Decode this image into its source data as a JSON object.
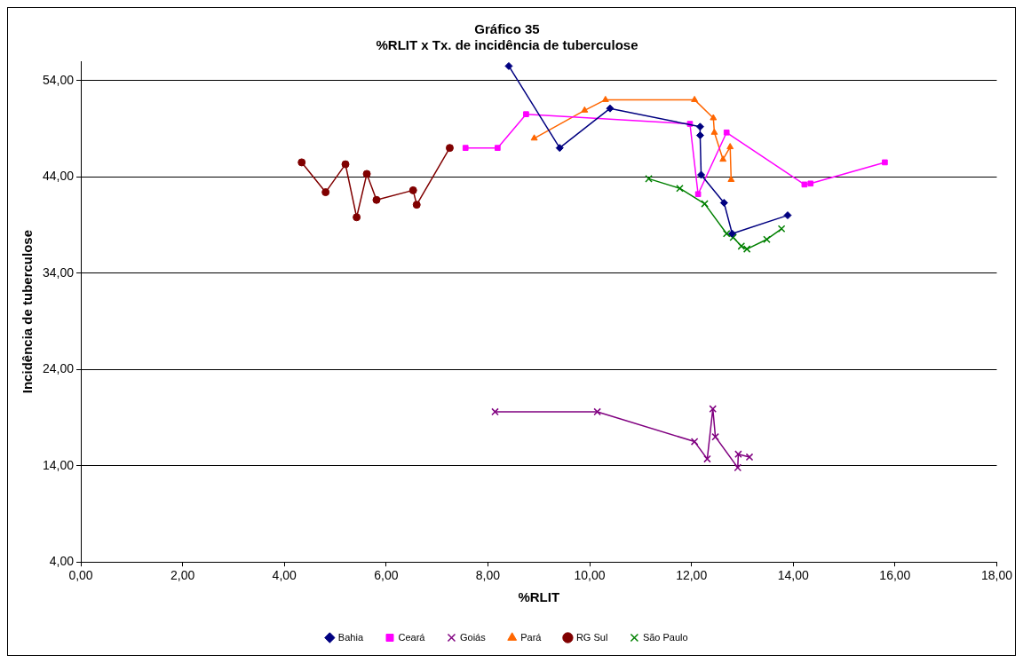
{
  "chart_data": {
    "type": "line",
    "title": [
      "Gráfico 35",
      "%RLIT x Tx. de incidência de tuberculose"
    ],
    "xlabel": "%RLIT",
    "ylabel": "Incidência de tuberculose",
    "xlim": [
      0,
      18
    ],
    "xticks": [
      {
        "value": 0,
        "label": "0,00"
      },
      {
        "value": 2,
        "label": "2,00"
      },
      {
        "value": 4,
        "label": "4,00"
      },
      {
        "value": 6,
        "label": "6,00"
      },
      {
        "value": 8,
        "label": "8,00"
      },
      {
        "value": 10,
        "label": "10,00"
      },
      {
        "value": 12,
        "label": "12,00"
      },
      {
        "value": 14,
        "label": "14,00"
      },
      {
        "value": 16,
        "label": "16,00"
      },
      {
        "value": 18,
        "label": "18,00"
      }
    ],
    "ylim": [
      4,
      56
    ],
    "yticks": [
      {
        "value": 4,
        "label": "4,00"
      },
      {
        "value": 14,
        "label": "14,00"
      },
      {
        "value": 24,
        "label": "24,00"
      },
      {
        "value": 34,
        "label": "34,00"
      },
      {
        "value": 44,
        "label": "44,00"
      },
      {
        "value": 54,
        "label": "54,00"
      }
    ],
    "grid": "y",
    "legend": "bottom",
    "line_style": "solid",
    "series": [
      {
        "name": "Bahia",
        "color": "#000080",
        "marker": "diamond",
        "x": [
          8.41,
          9.41,
          10.4,
          12.17,
          12.17,
          12.19,
          12.64,
          12.8,
          13.89
        ],
        "values": [
          55.5,
          47.0,
          51.1,
          49.2,
          48.3,
          44.2,
          41.3,
          38.1,
          40.0
        ]
      },
      {
        "name": "Ceará",
        "color": "#ff00ff",
        "marker": "square",
        "x": [
          7.56,
          8.19,
          8.75,
          11.97,
          12.13,
          12.69,
          14.22,
          14.34,
          15.8
        ],
        "values": [
          47.0,
          47.0,
          50.5,
          49.5,
          42.2,
          48.6,
          43.2,
          43.3,
          45.5
        ]
      },
      {
        "name": "Goiás",
        "color": "#800080",
        "marker": "cross",
        "x": [
          8.14,
          10.15,
          12.06,
          12.31,
          12.42,
          12.47,
          12.91,
          12.92,
          13.14
        ],
        "values": [
          19.6,
          19.6,
          16.5,
          14.7,
          19.9,
          17.0,
          13.8,
          15.2,
          14.9
        ]
      },
      {
        "name": "Pará",
        "color": "#ff6600",
        "marker": "triangle",
        "x": [
          8.91,
          9.9,
          10.31,
          12.06,
          12.43,
          12.45,
          12.62,
          12.76,
          12.78
        ],
        "values": [
          48.0,
          50.9,
          52.0,
          52.0,
          50.1,
          48.6,
          45.8,
          47.1,
          43.7
        ]
      },
      {
        "name": "RG Sul",
        "color": "#800000",
        "marker": "circle",
        "x": [
          4.34,
          4.81,
          5.2,
          5.42,
          5.62,
          5.81,
          6.53,
          6.6,
          7.25
        ],
        "values": [
          45.5,
          42.4,
          45.3,
          39.8,
          44.3,
          41.6,
          42.6,
          41.1,
          47.0
        ]
      },
      {
        "name": "São Paulo",
        "color": "#008000",
        "marker": "cross",
        "x": [
          11.16,
          11.77,
          12.26,
          12.69,
          12.82,
          12.98,
          13.09,
          13.48,
          13.77
        ],
        "values": [
          43.8,
          42.8,
          41.2,
          38.1,
          37.7,
          36.8,
          36.5,
          37.5,
          38.6
        ]
      }
    ]
  }
}
